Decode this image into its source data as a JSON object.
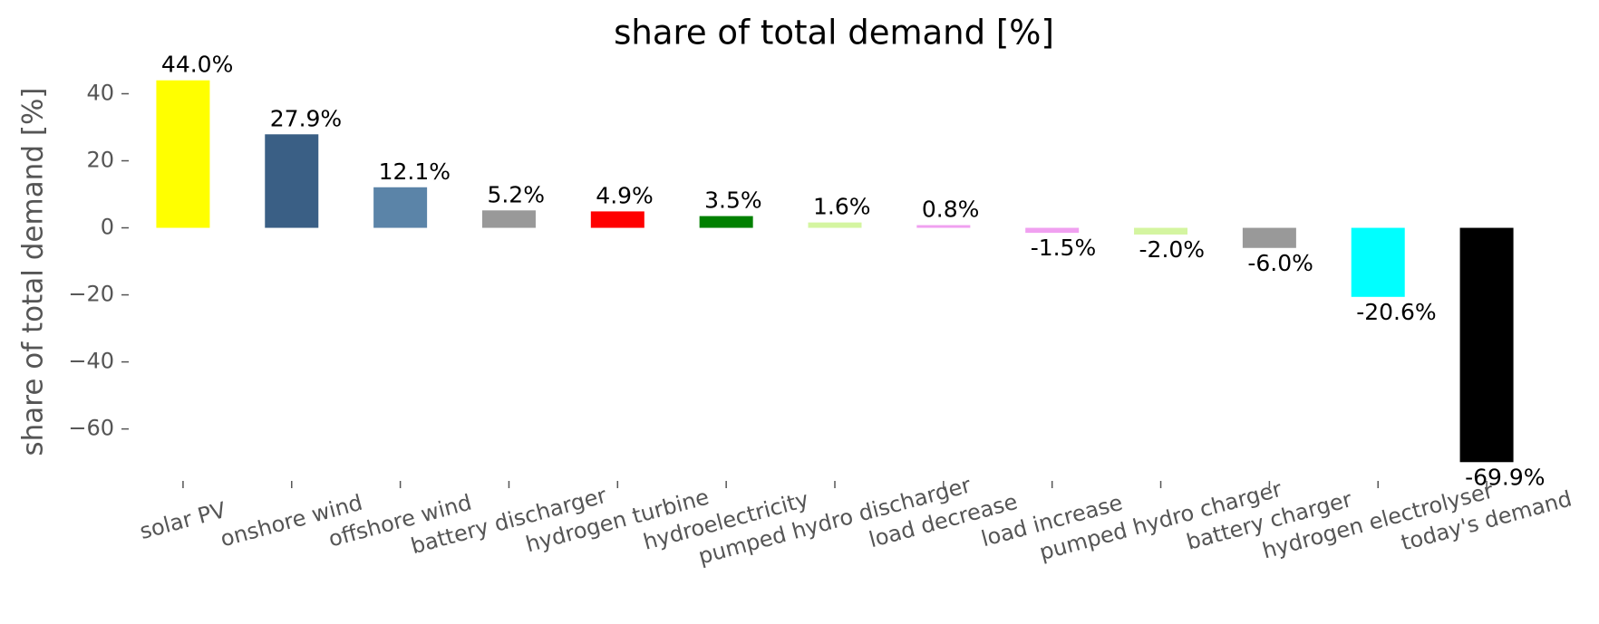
{
  "chart_data": {
    "type": "bar",
    "title": "share of total demand [%]",
    "y_label": "share of total demand [%]",
    "categories": [
      "solar PV",
      "onshore wind",
      "offshore wind",
      "battery discharger",
      "hydrogen turbine",
      "hydroelectricity",
      "pumped hydro discharger",
      "load decrease",
      "load increase",
      "pumped hydro charger",
      "battery charger",
      "hydrogen electrolyser",
      "today's demand"
    ],
    "values": [
      44.0,
      27.9,
      12.1,
      5.2,
      4.9,
      3.5,
      1.6,
      0.8,
      -1.5,
      -2.0,
      -6.0,
      -20.6,
      -69.9
    ],
    "value_labels": [
      "44.0%",
      "27.9%",
      "12.1%",
      "5.2%",
      "4.9%",
      "3.5%",
      "1.6%",
      "0.8%",
      "-1.5%",
      "-2.0%",
      "-6.0%",
      "-20.6%",
      "-69.9%"
    ],
    "colors": [
      "#ffff00",
      "#3a5f85",
      "#5b84a8",
      "#999999",
      "#ff0000",
      "#008000",
      "#d4f5a0",
      "#f0a0f0",
      "#f0a0f0",
      "#d4f5a0",
      "#999999",
      "#00ffff",
      "#000000"
    ],
    "ylim": [
      -75.5,
      45
    ],
    "yticks": [
      {
        "value": -60,
        "label": "−60"
      },
      {
        "value": -40,
        "label": "−40"
      },
      {
        "value": -20,
        "label": "−20"
      },
      0,
      20,
      40
    ],
    "grid": false
  }
}
